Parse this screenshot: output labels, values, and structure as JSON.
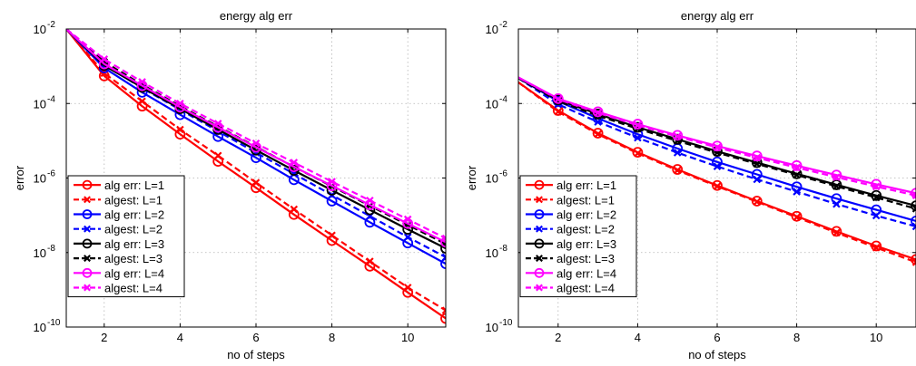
{
  "chart_data": [
    {
      "type": "line",
      "title": "energy alg err",
      "xlabel": "no of steps",
      "ylabel": "error",
      "yscale": "log",
      "xlim": [
        1,
        11
      ],
      "ylim": [
        1e-10,
        0.01
      ],
      "grid": true,
      "legend_position": "bottom-left",
      "x_ticks": [
        "2",
        "4",
        "6",
        "8",
        "10"
      ],
      "y_ticks": [
        {
          "base": "10",
          "exp": "-2"
        },
        {
          "base": "10",
          "exp": "-4"
        },
        {
          "base": "10",
          "exp": "-6"
        },
        {
          "base": "10",
          "exp": "-8"
        },
        {
          "base": "10",
          "exp": "-10"
        }
      ],
      "x": [
        1,
        2,
        3,
        4,
        5,
        6,
        7,
        8,
        9,
        10,
        11
      ],
      "series": [
        {
          "name": "alg err: L=1",
          "color": "#ff0000",
          "style": "solid",
          "marker": "circle",
          "values": [
            0.01,
            0.00055,
            8.5e-05,
            1.5e-05,
            2.8e-06,
            5.5e-07,
            1.05e-07,
            2.1e-08,
            4.3e-09,
            8.5e-10,
            1.7e-10
          ]
        },
        {
          "name": "algest: L=1",
          "color": "#ff0000",
          "style": "dashed",
          "marker": "x",
          "values": [
            0.01,
            0.00065,
            0.000115,
            2e-05,
            4e-06,
            7.5e-07,
            1.45e-07,
            2.9e-08,
            5.8e-09,
            1.15e-09,
            2.8e-10
          ]
        },
        {
          "name": "alg err: L=2",
          "color": "#0000ff",
          "style": "solid",
          "marker": "circle",
          "values": [
            0.01,
            0.0009,
            0.0002,
            5e-05,
            1.3e-05,
            3.5e-06,
            9e-07,
            2.4e-07,
            6.5e-08,
            1.8e-08,
            5e-09
          ]
        },
        {
          "name": "algest: L=2",
          "color": "#0000ff",
          "style": "dashed",
          "marker": "x",
          "values": [
            0.01,
            0.0011,
            0.00026,
            6.8e-05,
            1.8e-05,
            4.8e-06,
            1.3e-06,
            3.5e-07,
            9.5e-08,
            2.6e-08,
            7.5e-09
          ]
        },
        {
          "name": "alg err: L=3",
          "color": "#000000",
          "style": "solid",
          "marker": "circle",
          "values": [
            0.01,
            0.00105,
            0.00027,
            7.2e-05,
            2e-05,
            5.6e-06,
            1.6e-06,
            4.7e-07,
            1.4e-07,
            4.2e-08,
            1.3e-08
          ]
        },
        {
          "name": "algest: L=3",
          "color": "#000000",
          "style": "dashed",
          "marker": "x",
          "values": [
            0.01,
            0.0013,
            0.00032,
            8.5e-05,
            2.4e-05,
            6.9e-06,
            2e-06,
            6e-07,
            1.8e-07,
            5.5e-08,
            1.7e-08
          ]
        },
        {
          "name": "alg err: L=4",
          "color": "#ff00ff",
          "style": "solid",
          "marker": "circle",
          "values": [
            0.01,
            0.00115,
            0.0003,
            8e-05,
            2.3e-05,
            6.7e-06,
            2e-06,
            6.2e-07,
            1.9e-07,
            6e-08,
            1.9e-08
          ]
        },
        {
          "name": "algest: L=4",
          "color": "#ff00ff",
          "style": "dashed",
          "marker": "x",
          "values": [
            0.01,
            0.00155,
            0.00038,
            0.0001,
            2.9e-05,
            8.5e-06,
            2.6e-06,
            8e-07,
            2.5e-07,
            7.8e-08,
            2.4e-08
          ]
        }
      ]
    },
    {
      "type": "line",
      "title": "energy alg err",
      "xlabel": "no of steps",
      "ylabel": "error",
      "yscale": "log",
      "xlim": [
        1,
        11
      ],
      "ylim": [
        1e-10,
        0.01
      ],
      "grid": true,
      "legend_position": "bottom-left",
      "x_ticks": [
        "2",
        "4",
        "6",
        "8",
        "10"
      ],
      "y_ticks": [
        {
          "base": "10",
          "exp": "-2"
        },
        {
          "base": "10",
          "exp": "-4"
        },
        {
          "base": "10",
          "exp": "-6"
        },
        {
          "base": "10",
          "exp": "-8"
        },
        {
          "base": "10",
          "exp": "-10"
        }
      ],
      "x": [
        1,
        2,
        3,
        4,
        5,
        6,
        7,
        8,
        9,
        10,
        11
      ],
      "series": [
        {
          "name": "alg err: L=1",
          "color": "#ff0000",
          "style": "solid",
          "marker": "circle",
          "values": [
            0.00037,
            6.5e-05,
            1.6e-05,
            4.9e-06,
            1.7e-06,
            6.3e-07,
            2.4e-07,
            9.4e-08,
            3.7e-08,
            1.5e-08,
            6.5e-09
          ]
        },
        {
          "name": "algest: L=1",
          "color": "#ff0000",
          "style": "dashed",
          "marker": "x",
          "values": [
            0.00037,
            6e-05,
            1.5e-05,
            4.6e-06,
            1.6e-06,
            6e-07,
            2.3e-07,
            8.8e-08,
            3.4e-08,
            1.35e-08,
            5.5e-09
          ]
        },
        {
          "name": "alg err: L=2",
          "color": "#0000ff",
          "style": "solid",
          "marker": "circle",
          "values": [
            0.00048,
            0.000115,
            4e-05,
            1.5e-05,
            6.2e-06,
            2.7e-06,
            1.25e-06,
            5.8e-07,
            2.8e-07,
            1.4e-07,
            7e-08
          ]
        },
        {
          "name": "algest: L=2",
          "color": "#0000ff",
          "style": "dashed",
          "marker": "x",
          "values": [
            0.00048,
            9.5e-05,
            3.2e-05,
            1.2e-05,
            4.8e-06,
            2.05e-06,
            9.2e-07,
            4.3e-07,
            2e-07,
            9.8e-08,
            5e-08
          ]
        },
        {
          "name": "alg err: L=3",
          "color": "#000000",
          "style": "solid",
          "marker": "circle",
          "values": [
            0.00048,
            0.000125,
            5.2e-05,
            2.3e-05,
            1.1e-05,
            5.2e-06,
            2.6e-06,
            1.3e-06,
            6.6e-07,
            3.4e-07,
            1.8e-07
          ]
        },
        {
          "name": "algest: L=3",
          "color": "#000000",
          "style": "dashed",
          "marker": "x",
          "values": [
            0.00048,
            0.000115,
            4.7e-05,
            2.1e-05,
            9.9e-06,
            4.8e-06,
            2.4e-06,
            1.2e-06,
            6e-07,
            3e-07,
            1.5e-07
          ]
        },
        {
          "name": "alg err: L=4",
          "color": "#ff00ff",
          "style": "solid",
          "marker": "circle",
          "values": [
            0.0005,
            0.000135,
            6e-05,
            2.8e-05,
            1.4e-05,
            7.2e-06,
            3.9e-06,
            2.15e-06,
            1.2e-06,
            6.8e-07,
            3.9e-07
          ]
        },
        {
          "name": "algest: L=4",
          "color": "#ff00ff",
          "style": "dashed",
          "marker": "x",
          "values": [
            0.0005,
            0.00013,
            5.6e-05,
            2.6e-05,
            1.3e-05,
            6.6e-06,
            3.5e-06,
            1.9e-06,
            1.05e-06,
            5.9e-07,
            3.4e-07
          ]
        }
      ]
    }
  ]
}
